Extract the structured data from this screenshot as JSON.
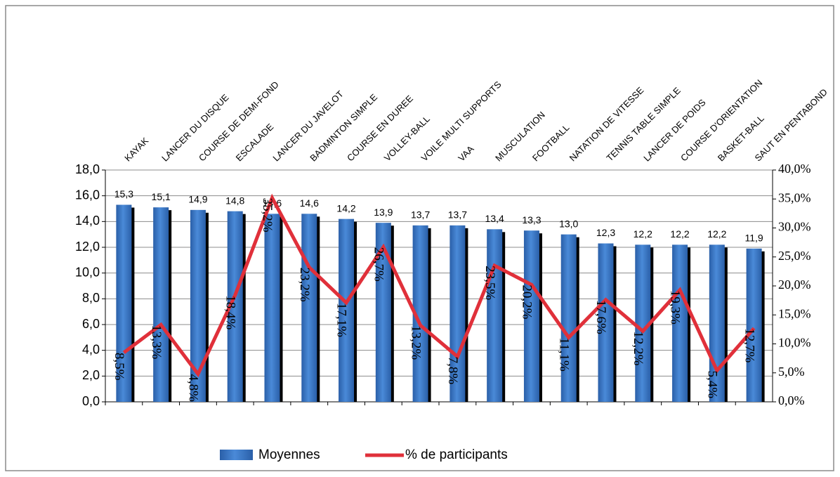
{
  "chart_data": {
    "type": "bar-line",
    "categories": [
      "KAYAK",
      "LANCER DU DISQUE",
      "COURSE DE DEMI-FOND",
      "ESCALADE",
      "LANCER DU JAVELOT",
      "BADMINTON SIMPLE",
      "COURSE EN DUREE",
      "VOLLEY-BALL",
      "VOILE MULTI SUPPORTS",
      "VAA",
      "MUSCULATION",
      "FOOTBALL",
      "NATATION DE VITESSE",
      "TENNIS TABLE SIMPLE",
      "LANCER DE POIDS",
      "COURSE D'ORIENTATION",
      "BASKET-BALL",
      "SAUT EN PENTABOND"
    ],
    "series": [
      {
        "name": "Moyennes",
        "color": "#3a78c8",
        "type": "bar",
        "values": [
          15.3,
          15.1,
          14.9,
          14.8,
          14.6,
          14.6,
          14.2,
          13.9,
          13.7,
          13.7,
          13.4,
          13.3,
          13.0,
          12.3,
          12.2,
          12.2,
          12.2,
          11.9
        ],
        "value_labels": [
          "15,3",
          "15,1",
          "14,9",
          "14,8",
          "14,6",
          "14,6",
          "14,2",
          "13,9",
          "13,7",
          "13,7",
          "13,4",
          "13,3",
          "13,0",
          "12,3",
          "12,2",
          "12,2",
          "12,2",
          "11,9"
        ]
      },
      {
        "name": "% de participants",
        "color": "#e0303a",
        "type": "line",
        "axis": "y2",
        "values": [
          8.5,
          13.3,
          4.8,
          18.4,
          35.2,
          23.2,
          17.1,
          26.7,
          13.2,
          7.8,
          23.5,
          20.2,
          11.1,
          17.6,
          12.2,
          19.3,
          5.4,
          12.7
        ],
        "value_labels": [
          "8,5%",
          "13,3%",
          "4,8%",
          "18,4%",
          "35,2%",
          "23,2%",
          "17,1%",
          "26,7%",
          "13,2%",
          "7,8%",
          "23,5%",
          "20,2%",
          "11,1%",
          "17,6%",
          "12,2%",
          "19,3%",
          "5,4%",
          "12,7%"
        ]
      }
    ],
    "ylim": [
      0,
      18
    ],
    "yticks": [
      {
        "value": 0,
        "label": "0,0"
      },
      {
        "value": 2,
        "label": "2,0"
      },
      {
        "value": 4,
        "label": "4,0"
      },
      {
        "value": 6,
        "label": "6,0"
      },
      {
        "value": 8,
        "label": "8,0"
      },
      {
        "value": 10,
        "label": "10,0"
      },
      {
        "value": 12,
        "label": "12,0"
      },
      {
        "value": 14,
        "label": "14,0"
      },
      {
        "value": 16,
        "label": "16,0"
      },
      {
        "value": 18,
        "label": "18,0"
      }
    ],
    "y2lim": [
      0,
      40
    ],
    "y2ticks": [
      {
        "value": 0,
        "label": "0,0%"
      },
      {
        "value": 5,
        "label": "5,0%"
      },
      {
        "value": 10,
        "label": "10,0%"
      },
      {
        "value": 15,
        "label": "15,0%"
      },
      {
        "value": 20,
        "label": "20,0%"
      },
      {
        "value": 25,
        "label": "25,0%"
      },
      {
        "value": 30,
        "label": "30,0%"
      },
      {
        "value": 35,
        "label": "35,0%"
      },
      {
        "value": 40,
        "label": "40,0%"
      }
    ],
    "grid": true,
    "legend": "bottom"
  }
}
